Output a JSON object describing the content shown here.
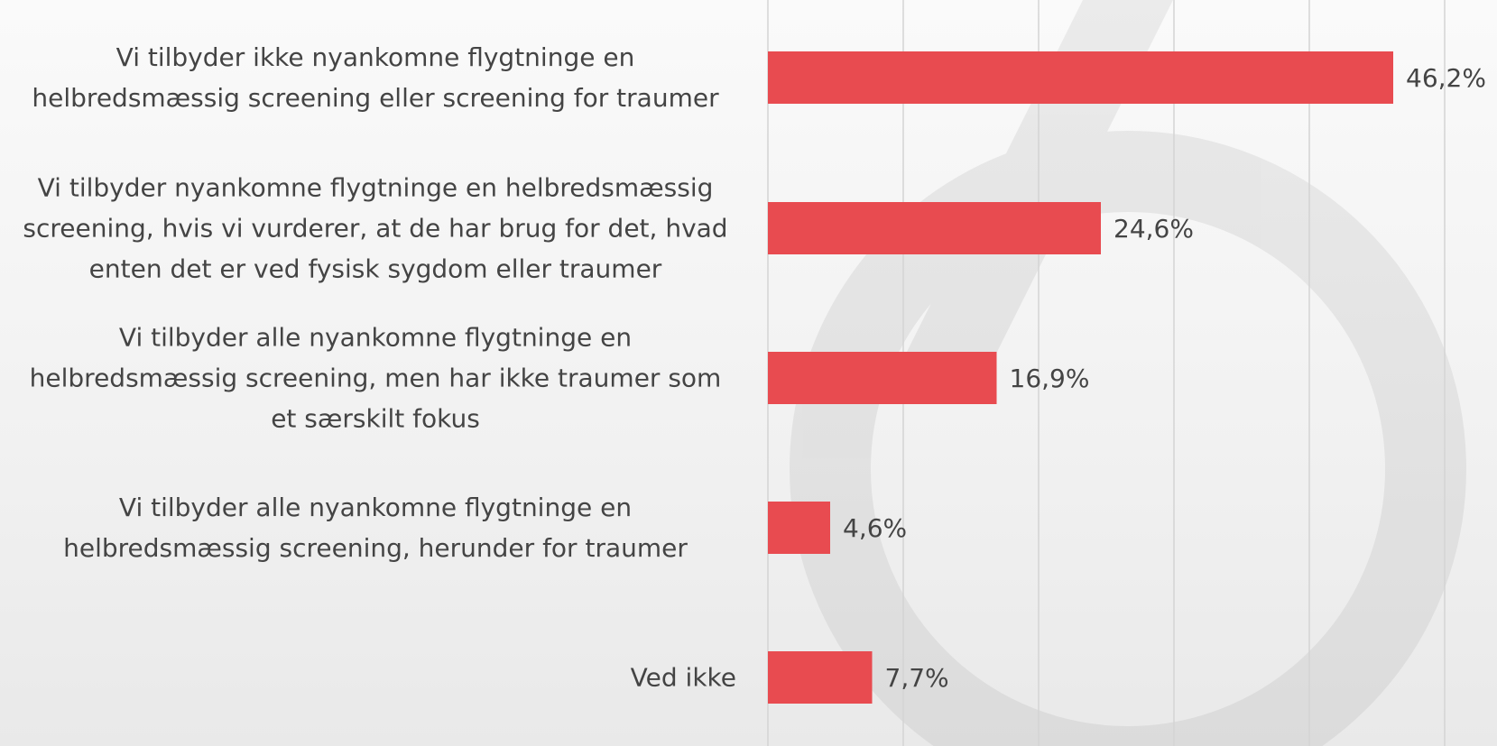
{
  "chart_data": {
    "type": "bar",
    "orientation": "horizontal",
    "categories": [
      "Vi tilbyder ikke nyankomne flygtninge en helbredsmæssig screening eller screening for traumer",
      "Vi tilbyder nyankomne flygtninge en helbredsmæssig screening, hvis vi vurderer, at de har brug for det, hvad enten det er ved fysisk sygdom eller traumer",
      "Vi tilbyder alle nyankomne flygtninge en helbredsmæssig screening, men har ikke traumer som et særskilt fokus",
      "Vi tilbyder alle nyankomne flygtninge en helbredsmæssig screening, herunder for traumer",
      "Ved ikke"
    ],
    "values": [
      46.2,
      24.6,
      16.9,
      4.6,
      7.7
    ],
    "value_labels": [
      "46,2%",
      "24,6%",
      "16,9%",
      "4,6%",
      "7,7%"
    ],
    "color": "#e84b50",
    "xlim": [
      0,
      50
    ],
    "xticks": [
      0,
      10,
      20,
      30,
      40,
      50
    ],
    "grid": true,
    "tick_labels": false
  }
}
